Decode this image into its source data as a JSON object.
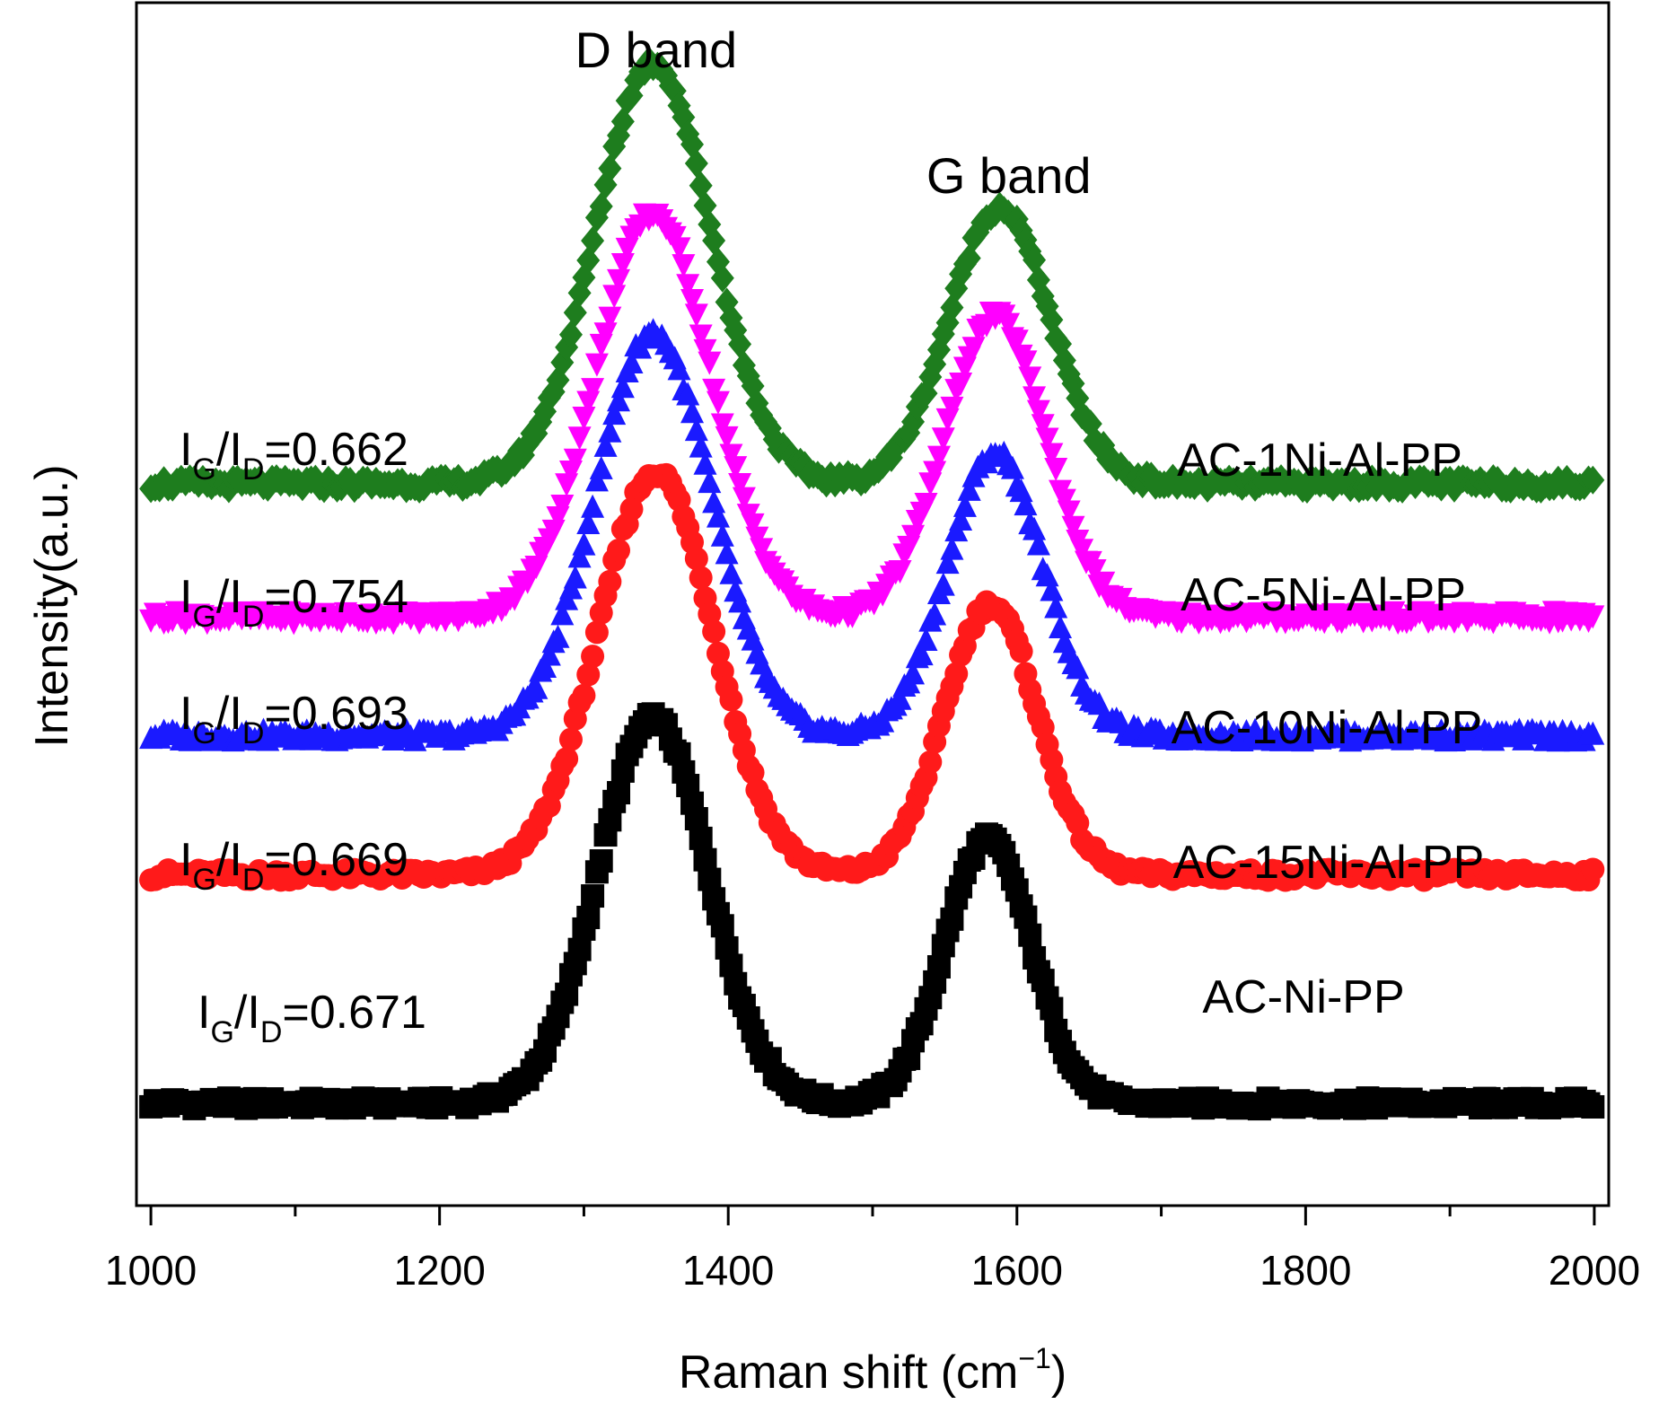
{
  "chart_data": {
    "type": "scatter",
    "title": "",
    "xlabel_main": "Raman shift (cm",
    "xlabel_sup": "−1",
    "xlabel_close": ")",
    "ylabel": "Intensity(a.u.)",
    "xlim": [
      990,
      2010
    ],
    "ylim": [
      0,
      100
    ],
    "x_ticks": [
      1000,
      1200,
      1400,
      1600,
      1800,
      2000
    ],
    "x_minor_ticks": [
      1100,
      1300,
      1500,
      1700,
      1900
    ],
    "annotations": {
      "d_band": {
        "text": "D band",
        "x": 1350
      },
      "g_band": {
        "text": "G band",
        "x": 1585
      }
    },
    "series": [
      {
        "name": "AC-1Ni-Al-PP",
        "marker": "diamond",
        "color": "#1e7d1e",
        "baseline": 60.0,
        "peaks": [
          {
            "center": 1348,
            "width": 40,
            "height": 35.0
          },
          {
            "center": 1588,
            "width": 35,
            "height": 23.0
          }
        ],
        "ratio": {
          "prefix": "I",
          "sub1": "G",
          "slash": "/I",
          "sub2": "D",
          "value": "=0.662"
        }
      },
      {
        "name": "AC-5Ni-Al-PP",
        "marker": "triangle-down",
        "color": "#ff00ff",
        "baseline": 49.0,
        "peaks": [
          {
            "center": 1348,
            "width": 40,
            "height": 33.5
          },
          {
            "center": 1585,
            "width": 35,
            "height": 25.0
          }
        ],
        "ratio": {
          "prefix": "I",
          "sub1": "G",
          "slash": "/I",
          "sub2": "D",
          "value": "=0.754"
        }
      },
      {
        "name": "AC-10Ni-Al-PP",
        "marker": "triangle-up",
        "color": "#1a1aff",
        "baseline": 39.0,
        "peaks": [
          {
            "center": 1348,
            "width": 40,
            "height": 33.5
          },
          {
            "center": 1585,
            "width": 33,
            "height": 23.5
          }
        ],
        "ratio": {
          "prefix": "I",
          "sub1": "G",
          "slash": "/I",
          "sub2": "D",
          "value": "=0.693"
        }
      },
      {
        "name": "AC-15Ni-Al-PP",
        "marker": "circle",
        "color": "#ff1a1a",
        "baseline": 27.5,
        "peaks": [
          {
            "center": 1350,
            "width": 40,
            "height": 33.5
          },
          {
            "center": 1582,
            "width": 32,
            "height": 22.5
          }
        ],
        "ratio": {
          "prefix": "I",
          "sub1": "G",
          "slash": "/I",
          "sub2": "D",
          "value": "=0.669"
        }
      },
      {
        "name": "AC-Ni-PP",
        "marker": "square",
        "color": "#000000",
        "baseline": 8.5,
        "peaks": [
          {
            "center": 1348,
            "width": 38,
            "height": 32.0
          },
          {
            "center": 1580,
            "width": 30,
            "height": 22.0
          }
        ],
        "ratio": {
          "prefix": "I",
          "sub1": "G",
          "slash": "/I",
          "sub2": "D",
          "value": "=0.671"
        }
      }
    ]
  }
}
